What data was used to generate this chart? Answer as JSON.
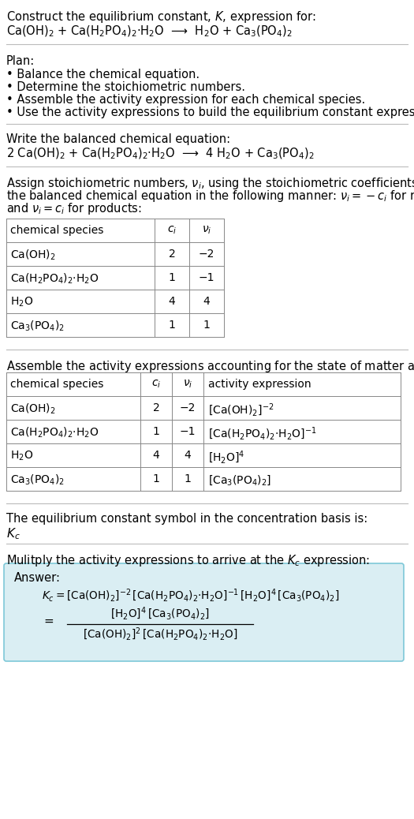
{
  "bg_color": "#ffffff",
  "text_color": "#000000",
  "answer_box_color": "#daeef3",
  "answer_box_edge": "#7ec8d8",
  "title_text": "Construct the equilibrium constant, $K$, expression for:",
  "reaction_unbalanced": "Ca(OH)$_2$ + Ca(H$_2$PO$_4$)$_2$·H$_2$O  ⟶  H$_2$O + Ca$_3$(PO$_4$)$_2$",
  "plan_header": "Plan:",
  "plan_items": [
    "• Balance the chemical equation.",
    "• Determine the stoichiometric numbers.",
    "• Assemble the activity expression for each chemical species.",
    "• Use the activity expressions to build the equilibrium constant expression."
  ],
  "balanced_header": "Write the balanced chemical equation:",
  "balanced_reaction": "2 Ca(OH)$_2$ + Ca(H$_2$PO$_4$)$_2$·H$_2$O  ⟶  4 H$_2$O + Ca$_3$(PO$_4$)$_2$",
  "assign_text_lines": [
    "Assign stoichiometric numbers, $\\nu_i$, using the stoichiometric coefficients, $c_i$, from",
    "the balanced chemical equation in the following manner: $\\nu_i = -c_i$ for reactants",
    "and $\\nu_i = c_i$ for products:"
  ],
  "table1_headers": [
    "chemical species",
    "$c_i$",
    "$\\nu_i$"
  ],
  "table1_rows": [
    [
      "Ca(OH)$_2$",
      "2",
      "−2"
    ],
    [
      "Ca(H$_2$PO$_4$)$_2$·H$_2$O",
      "1",
      "−1"
    ],
    [
      "H$_2$O",
      "4",
      "4"
    ],
    [
      "Ca$_3$(PO$_4$)$_2$",
      "1",
      "1"
    ]
  ],
  "assemble_text": "Assemble the activity expressions accounting for the state of matter and $\\nu_i$:",
  "table2_headers": [
    "chemical species",
    "$c_i$",
    "$\\nu_i$",
    "activity expression"
  ],
  "table2_rows": [
    [
      "Ca(OH)$_2$",
      "2",
      "−2",
      "[Ca(OH)$_2$]$^{-2}$"
    ],
    [
      "Ca(H$_2$PO$_4$)$_2$·H$_2$O",
      "1",
      "−1",
      "[Ca(H$_2$PO$_4$)$_2$·H$_2$O]$^{-1}$"
    ],
    [
      "H$_2$O",
      "4",
      "4",
      "[H$_2$O]$^4$"
    ],
    [
      "Ca$_3$(PO$_4$)$_2$",
      "1",
      "1",
      "[Ca$_3$(PO$_4$)$_2$]"
    ]
  ],
  "kc_text": "The equilibrium constant symbol in the concentration basis is:",
  "kc_symbol": "$K_c$",
  "multiply_text": "Mulitply the activity expressions to arrive at the $K_c$ expression:",
  "answer_label": "Answer:",
  "answer_line1": "$K_c = [\\mathrm{Ca(OH)_2}]^{-2}\\,[\\mathrm{Ca(H_2PO_4)_2{\\cdot}H_2O}]^{-1}\\,[\\mathrm{H_2O}]^4\\,[\\mathrm{Ca_3(PO_4)_2}]$",
  "answer_numerator": "$[\\mathrm{H_2O}]^4\\,[\\mathrm{Ca_3(PO_4)_2}]$",
  "answer_denominator": "$[\\mathrm{Ca(OH)_2}]^2\\,[\\mathrm{Ca(H_2PO_4)_2{\\cdot}H_2O}]$",
  "answer_eq": "$=$"
}
